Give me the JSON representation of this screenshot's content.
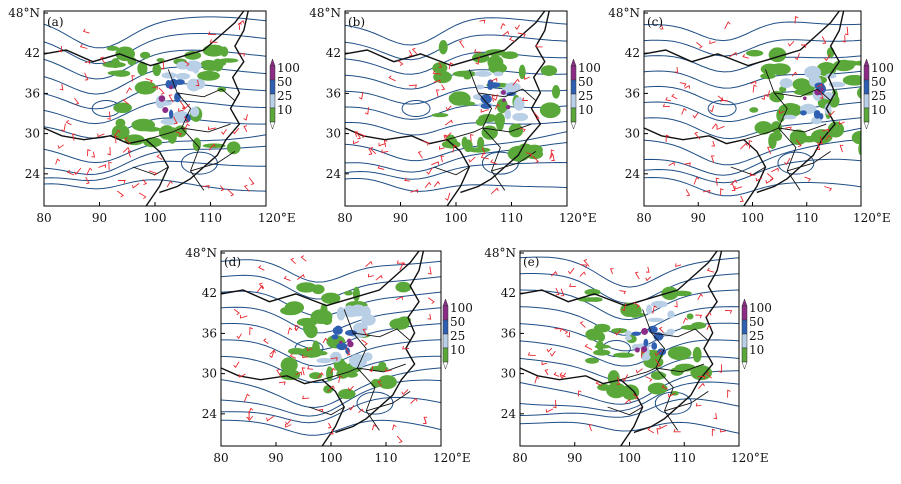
{
  "figure": {
    "panels": [
      {
        "id": "a",
        "tag": "(a)"
      },
      {
        "id": "b",
        "tag": "(b)"
      },
      {
        "id": "c",
        "tag": "(c)"
      },
      {
        "id": "d",
        "tag": "(d)"
      },
      {
        "id": "e",
        "tag": "(e)"
      }
    ],
    "lon_ticks": [
      "80",
      "90",
      "100",
      "110",
      "120°E"
    ],
    "lat_ticks": [
      "48°N",
      "42",
      "36",
      "30",
      "24"
    ],
    "legend": {
      "levels": [
        "100",
        "50",
        "25",
        "10"
      ],
      "colors": [
        "#8a2c86",
        "#2f5fb0",
        "#b8cfe6",
        "#5aa83a"
      ]
    },
    "colors": {
      "contour": "#1f4f86",
      "coast": "#111111",
      "wind": "#e8262e",
      "precip_light": "#5aa83a",
      "precip_mid": "#b8cfe6",
      "precip_heavy": "#2f5fb0",
      "precip_extreme": "#8a2c86"
    }
  }
}
